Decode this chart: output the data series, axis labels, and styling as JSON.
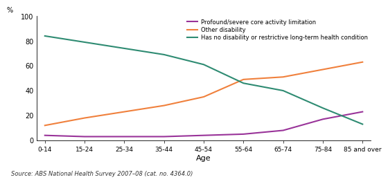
{
  "categories": [
    "0-14",
    "15-24",
    "25-34",
    "35-44",
    "45-54",
    "55-64",
    "65-74",
    "75-84",
    "85 and over"
  ],
  "profound": [
    4,
    3,
    3,
    3,
    4,
    5,
    8,
    17,
    23
  ],
  "other": [
    12,
    18,
    23,
    28,
    35,
    49,
    51,
    57,
    63
  ],
  "no_disability": [
    84,
    79,
    74,
    69,
    61,
    46,
    40,
    26,
    13
  ],
  "profound_color": "#993399",
  "other_color": "#f0803c",
  "no_disability_color": "#2e8b72",
  "profound_label": "Profound/severe core activity limitation",
  "other_label": "Other disability",
  "no_disability_label": "Has no disability or restrictive long-term health condition",
  "xlabel": "Age",
  "ylabel": "%",
  "ylim": [
    0,
    100
  ],
  "yticks": [
    0,
    20,
    40,
    60,
    80,
    100
  ],
  "source": "Source: ABS National Health Survey 2007–08 (cat. no. 4364.0)",
  "line_width": 1.5
}
